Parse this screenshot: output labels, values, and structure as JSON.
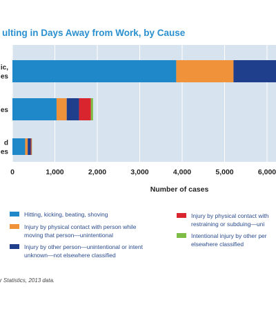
{
  "title": "ulting in Days Away from Work, by Cause",
  "source": "r Statistics, 2013 data.",
  "chart_data": {
    "type": "bar",
    "orientation": "horizontal",
    "stacked": true,
    "categories": [
      "ic,\nes",
      "es",
      "d\nes"
    ],
    "xlabel": "Number of cases",
    "xlim": [
      0,
      6500
    ],
    "xticks": [
      0,
      1000,
      2000,
      3000,
      4000,
      5000,
      6000
    ],
    "xtick_labels": [
      "0",
      "1,000",
      "2,000",
      "3,000",
      "4,000",
      "5,000",
      "6,000"
    ],
    "grid": true,
    "legend_position": "bottom",
    "series": [
      {
        "name": "Hitting, kicking, beating, shoving",
        "color": "#1e88c8",
        "values": [
          3860,
          1040,
          300
        ]
      },
      {
        "name": "Injury by physical contact with person while moving that person—unintentional",
        "color": "#f0923a",
        "values": [
          1350,
          240,
          60
        ]
      },
      {
        "name": "Injury by other person—unintentional or intent unknown—not elsewhere classified",
        "color": "#1f3f8c",
        "values": [
          1010,
          290,
          70
        ]
      },
      {
        "name": "Injury by physical contact with restraining or subduing—uni",
        "color": "#d9262e",
        "values": [
          120,
          280,
          20
        ]
      },
      {
        "name": "Intentional injury by other per elsewhere classified",
        "color": "#7ebd45",
        "values": [
          0,
          50,
          10
        ]
      }
    ]
  },
  "legend": [
    {
      "text": "Hitting, kicking, beating, shoving",
      "color": "#1e88c8"
    },
    {
      "text": "Injury by physical contact with person while moving that person—unintentional",
      "color": "#f0923a"
    },
    {
      "text": "Injury by other person—unintentional or intent unknown—not elsewhere classified",
      "color": "#1f3f8c"
    },
    {
      "text": "Injury by physical contact with restraining or subduing—uni",
      "color": "#d9262e"
    },
    {
      "text": "Intentional injury by other per elsewhere classified",
      "color": "#7ebd45"
    }
  ]
}
